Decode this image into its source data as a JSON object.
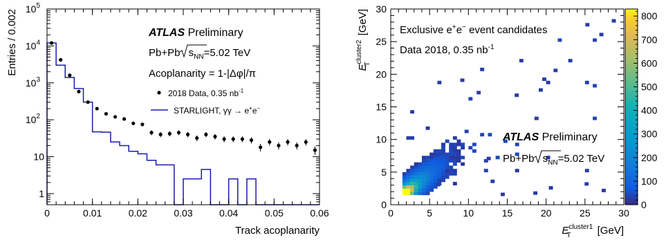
{
  "chart_data": [
    {
      "type": "line",
      "xlabel": "Track acoplanarity",
      "ylabel": "Entries / 0.002",
      "yscale": "log",
      "xlim": [
        0,
        0.06
      ],
      "ylim": [
        0.5,
        100000
      ],
      "x_ticks": [
        "0",
        "0.01",
        "0.02",
        "0.03",
        "0.04",
        "0.05",
        "0.06"
      ],
      "y_ticks": [
        {
          "base": "1",
          "exp": ""
        },
        {
          "base": "10",
          "exp": ""
        },
        {
          "base": "10",
          "exp": "2"
        },
        {
          "base": "10",
          "exp": "3"
        },
        {
          "base": "10",
          "exp": "4"
        },
        {
          "base": "10",
          "exp": "5"
        }
      ],
      "annotation": {
        "atlas": "ATLAS",
        "preliminary": "Preliminary",
        "system_pre": "Pb+Pb ",
        "system_s": "s",
        "system_sub": "NN",
        "system_post": "=5.02 TeV",
        "acop_label": "Acoplanarity = 1-|Δφ|/π"
      },
      "legend": {
        "data_main": "2018 Data, 0.35 nb",
        "data_sup": "-1",
        "mc_main": "STARLIGHT, γγ → e",
        "mc_sup1": "+",
        "mc_mid": "e",
        "mc_sup2": "−"
      },
      "series": [
        {
          "name": "2018 Data, 0.35 nb-1",
          "style": "points",
          "color": "#000000",
          "x": [
            0.001,
            0.003,
            0.005,
            0.007,
            0.009,
            0.011,
            0.013,
            0.015,
            0.017,
            0.019,
            0.021,
            0.023,
            0.025,
            0.027,
            0.029,
            0.031,
            0.033,
            0.035,
            0.037,
            0.039,
            0.041,
            0.043,
            0.045,
            0.047,
            0.049,
            0.051,
            0.053,
            0.055,
            0.057,
            0.059
          ],
          "y": [
            12000,
            4200,
            1600,
            580,
            300,
            200,
            145,
            120,
            105,
            80,
            75,
            45,
            40,
            42,
            45,
            40,
            32,
            40,
            35,
            30,
            30,
            30,
            28,
            18,
            25,
            20,
            25,
            20,
            25,
            15
          ]
        },
        {
          "name": "STARLIGHT, γγ → e+e-",
          "style": "step",
          "color": "#1a1ab0",
          "bin_width": 0.002,
          "x": [
            0.001,
            0.003,
            0.005,
            0.007,
            0.009,
            0.011,
            0.013,
            0.015,
            0.017,
            0.019,
            0.021,
            0.023,
            0.025,
            0.027,
            0.029,
            0.031,
            0.033,
            0.035,
            0.037,
            0.039,
            0.041,
            0.043,
            0.045,
            0.047,
            0.049,
            0.051,
            0.053,
            0.055,
            0.057,
            0.059
          ],
          "y": [
            12000,
            3000,
            1400,
            700,
            300,
            47,
            46,
            25,
            20,
            14,
            12,
            8,
            6,
            6,
            0,
            2.5,
            2.5,
            4.5,
            0,
            0,
            2.5,
            0,
            2.5,
            0,
            0,
            0,
            0,
            0,
            0,
            0
          ]
        }
      ]
    },
    {
      "type": "heatmap",
      "xlabel_main": "E",
      "xlabel_sup": "cluster1",
      "xlabel_sub": "T",
      "xlabel_unit": " [GeV]",
      "ylabel_main": "E",
      "ylabel_sup": "cluster2",
      "ylabel_sub": "T",
      "ylabel_unit": " [GeV]",
      "xlim": [
        0,
        30
      ],
      "ylim": [
        0,
        30
      ],
      "x_ticks": [
        "0",
        "5",
        "10",
        "15",
        "20",
        "25",
        "30"
      ],
      "y_ticks": [
        "0",
        "5",
        "10",
        "15",
        "20",
        "25",
        "30"
      ],
      "zlim": [
        0,
        830
      ],
      "colorbar_ticks": [
        "0",
        "100",
        "200",
        "300",
        "400",
        "500",
        "600",
        "700",
        "800"
      ],
      "bin_width": 0.5,
      "annotation": {
        "line1_pre": "Exclusive e",
        "line1_sup1": "+",
        "line1_mid": "e",
        "line1_sup2": "−",
        "line1_post": " event candidates",
        "line2_main": "Data 2018, 0.35 nb",
        "line2_sup": "-1",
        "atlas": "ATLAS",
        "preliminary": "Preliminary",
        "system_pre": "Pb+Pb ",
        "system_s": "s",
        "system_sub": "NN",
        "system_post": "=5.02 TeV"
      },
      "description": "Counts concentrated along the diagonal E_T(cluster1) ≈ E_T(cluster2); peak ~800 near 2–3 GeV, falling rapidly with energy; sparse entries up to ~30 GeV."
    }
  ]
}
